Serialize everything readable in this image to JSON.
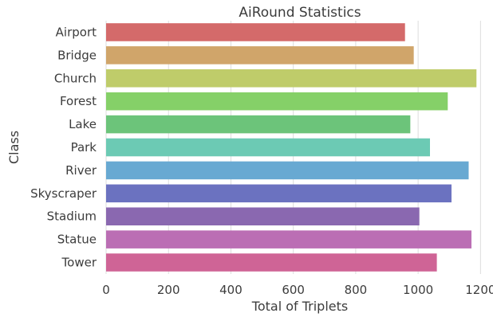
{
  "chart_data": {
    "type": "bar",
    "orientation": "horizontal",
    "title": "AiRound Statistics",
    "xlabel": "Total of Triplets",
    "ylabel": "Class",
    "categories": [
      "Airport",
      "Bridge",
      "Church",
      "Forest",
      "Lake",
      "Park",
      "River",
      "Skyscraper",
      "Stadium",
      "Statue",
      "Tower"
    ],
    "values": [
      958,
      986,
      1187,
      1095,
      975,
      1038,
      1162,
      1107,
      1004,
      1171,
      1060
    ],
    "colors": [
      "#d46a6a",
      "#d0a56a",
      "#bfcc6a",
      "#85d068",
      "#6cc47a",
      "#6ccab4",
      "#68a9d2",
      "#6b72c0",
      "#8a68b0",
      "#bb6eb4",
      "#cf6496"
    ],
    "xlim": [
      0,
      1240
    ],
    "xticks": [
      0,
      200,
      400,
      600,
      800,
      1000,
      1200
    ],
    "grid": true,
    "legend": false
  }
}
